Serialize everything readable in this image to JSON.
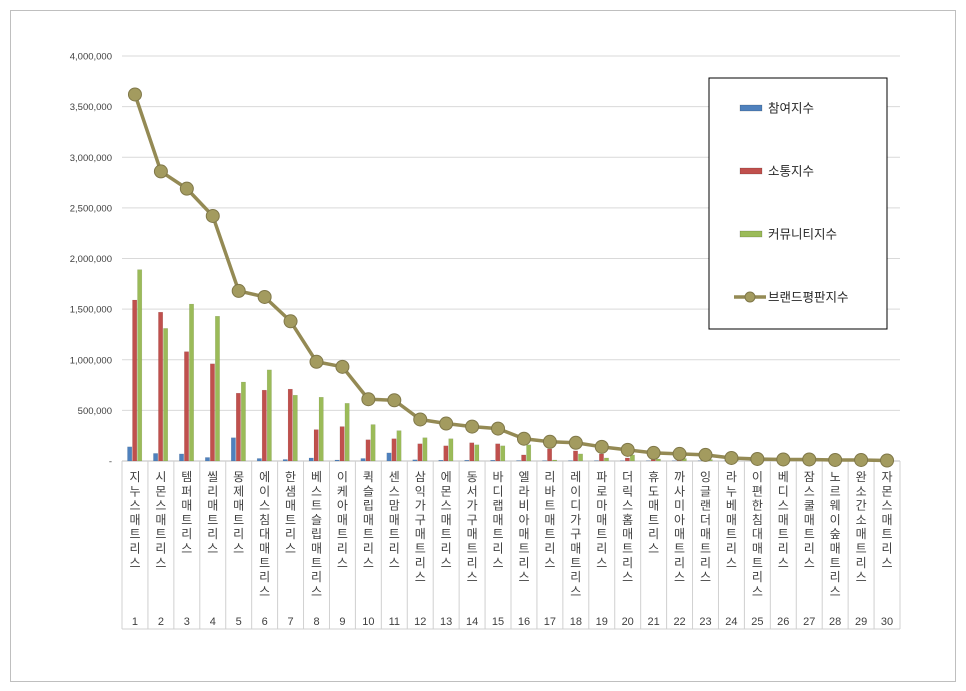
{
  "chart_data": {
    "type": "bar",
    "ylim": [
      0,
      4000000
    ],
    "yticks": [
      "-",
      "500,000",
      "1,000,000",
      "1,500,000",
      "2,000,000",
      "2,500,000",
      "3,000,000",
      "3,500,000",
      "4,000,000"
    ],
    "ytick_values": [
      0,
      500000,
      1000000,
      1500000,
      2000000,
      2500000,
      3000000,
      3500000,
      4000000
    ],
    "grid": true,
    "legend_position": "top-right",
    "ranks": [
      "1",
      "2",
      "3",
      "4",
      "5",
      "6",
      "7",
      "8",
      "9",
      "10",
      "11",
      "12",
      "13",
      "14",
      "15",
      "16",
      "17",
      "18",
      "19",
      "20",
      "21",
      "22",
      "23",
      "24",
      "25",
      "26",
      "27",
      "28",
      "29",
      "30"
    ],
    "categories": [
      "지누스매트리스",
      "시몬스매트리스",
      "템퍼매트리스",
      "씰리매트리스",
      "몽제매트리스",
      "에이스침대매트리스",
      "한샘매트리스",
      "베스트슬립매트리스",
      "이케아매트리스",
      "퀵슬립매트리스",
      "센스맘매트리스",
      "삼익가구매트리스",
      "에몬스매트리스",
      "동서가구매트리스",
      "바디랩매트리스",
      "엘라비아매트리스",
      "리바트매트리스",
      "레이디가구매트리스",
      "파로마매트리스",
      "더릭스홈매트리스",
      "휴도매트리스",
      "까사미아매트리스",
      "잉글랜더매트리스",
      "라누베매트리스",
      "이편한침대매트리스",
      "베디스매트리스",
      "잠스쿨매트리스",
      "노르웨이숲매트리스",
      "완소간소매트리스",
      "자몬스매트리스"
    ],
    "series": [
      {
        "name": "참여지수",
        "kind": "bar",
        "color": "#4f81bd",
        "values": [
          140000,
          75000,
          70000,
          35000,
          230000,
          25000,
          15000,
          30000,
          10000,
          25000,
          80000,
          12000,
          8000,
          8000,
          8000,
          5000,
          4000,
          4000,
          4000,
          3000,
          3000,
          3000,
          3000,
          2000,
          2000,
          2000,
          2000,
          2000,
          1000,
          1000
        ]
      },
      {
        "name": "소통지수",
        "kind": "bar",
        "color": "#c0504d",
        "values": [
          1590000,
          1470000,
          1080000,
          960000,
          670000,
          700000,
          710000,
          310000,
          340000,
          210000,
          220000,
          170000,
          150000,
          180000,
          170000,
          60000,
          120000,
          100000,
          70000,
          30000,
          20000,
          20000,
          15000,
          10000,
          8000,
          8000,
          5000,
          5000,
          4000,
          3000
        ]
      },
      {
        "name": "커뮤니티지수",
        "kind": "bar",
        "color": "#9bbb59",
        "values": [
          1890000,
          1310000,
          1550000,
          1430000,
          780000,
          900000,
          650000,
          630000,
          570000,
          360000,
          300000,
          230000,
          220000,
          160000,
          150000,
          160000,
          10000,
          70000,
          30000,
          60000,
          20000,
          25000,
          15000,
          10000,
          8000,
          8000,
          5000,
          5000,
          4000,
          3000
        ]
      },
      {
        "name": "브랜드평판지수",
        "kind": "line",
        "color": "#948a54",
        "values": [
          3620000,
          2860000,
          2690000,
          2420000,
          1680000,
          1620000,
          1380000,
          980000,
          930000,
          610000,
          600000,
          410000,
          370000,
          340000,
          320000,
          220000,
          190000,
          180000,
          140000,
          110000,
          80000,
          70000,
          60000,
          30000,
          20000,
          15000,
          15000,
          10000,
          10000,
          5000
        ]
      }
    ]
  }
}
